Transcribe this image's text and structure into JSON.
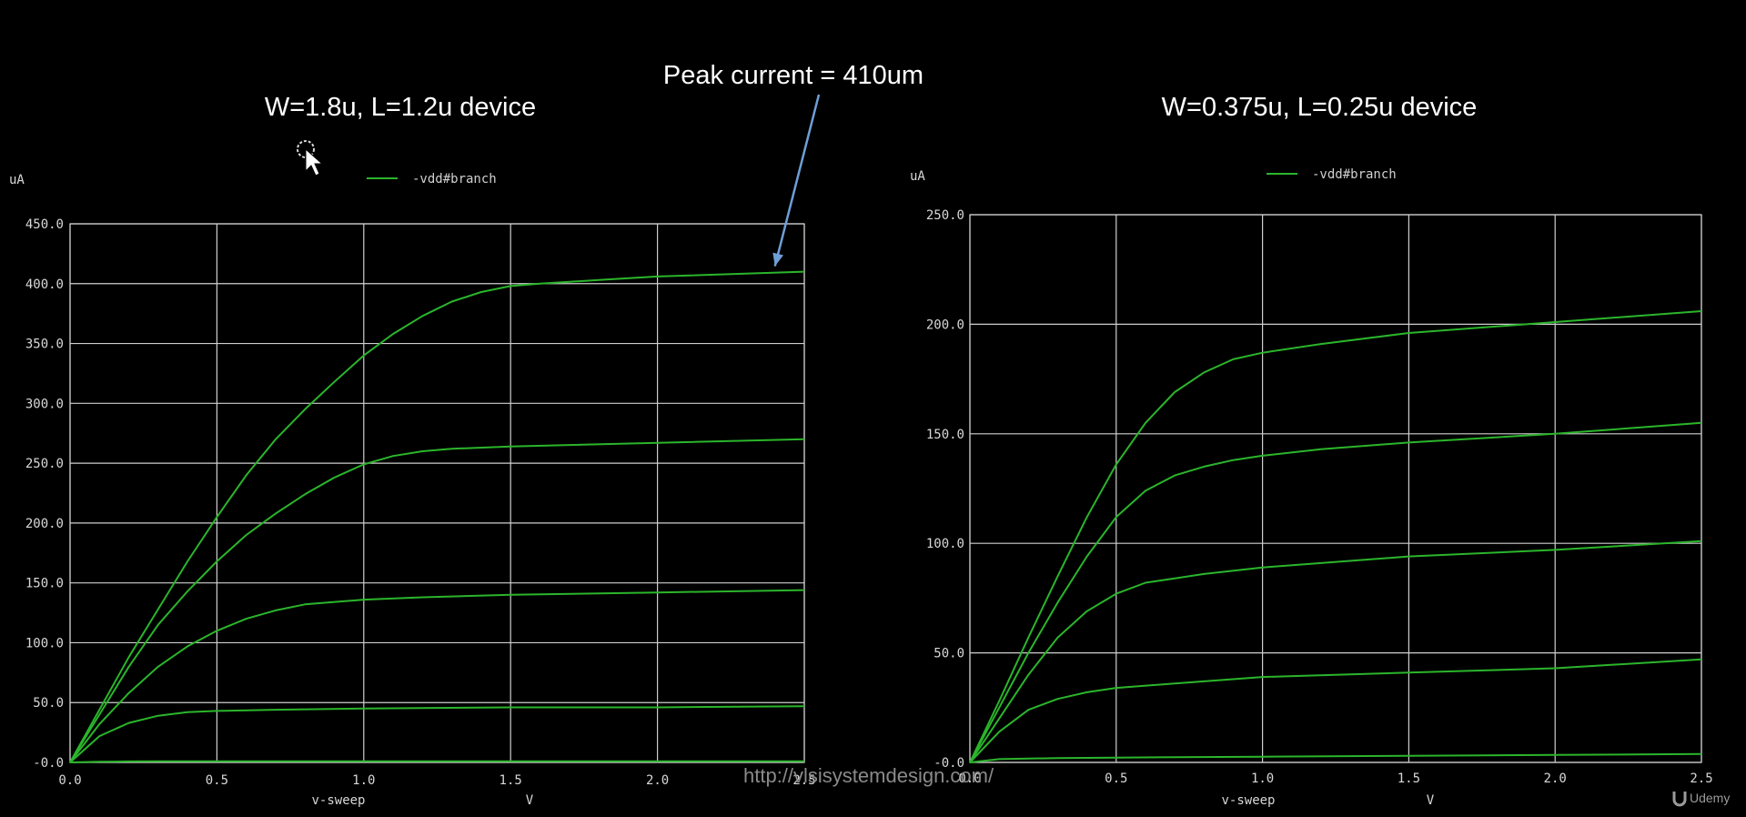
{
  "annotation": {
    "text": "Peak current = 410um",
    "target_x": 2.4,
    "target_y": 410
  },
  "watermark": "http://vlsisystemdesign.com/",
  "brand": "Udemy",
  "colors": {
    "trace": "#2bb52b",
    "grid": "#cfcfcf",
    "arrow": "#6f9ed6",
    "background": "#000000"
  },
  "chart_data": [
    {
      "type": "line",
      "title": "W=1.8u, L=1.2u device",
      "ylabel": "uA",
      "xlabel": "v-sweep",
      "xunit": "V",
      "legend": "-vdd#branch",
      "legend_position": "top-center",
      "grid": true,
      "xlim": [
        0,
        2.5
      ],
      "ylim": [
        0,
        450
      ],
      "x_ticks": [
        "0.0",
        "0.5",
        "1.0",
        "1.5",
        "2.0",
        "2.5"
      ],
      "y_ticks": [
        "-0.0",
        "50.0",
        "100.0",
        "150.0",
        "200.0",
        "250.0",
        "300.0",
        "350.0",
        "400.0",
        "450.0"
      ],
      "series": [
        {
          "x": [
            0,
            0.1,
            0.2,
            0.3,
            0.4,
            0.5,
            0.7,
            1.0,
            1.5,
            2.0,
            2.5
          ],
          "y": [
            0,
            0.5,
            0.8,
            1,
            1,
            1,
            1,
            1,
            1,
            1,
            1
          ]
        },
        {
          "x": [
            0,
            0.1,
            0.2,
            0.3,
            0.4,
            0.5,
            0.7,
            1.0,
            1.5,
            2.0,
            2.5
          ],
          "y": [
            0,
            22,
            33,
            39,
            42,
            43,
            44,
            45,
            46,
            46,
            47
          ]
        },
        {
          "x": [
            0,
            0.1,
            0.2,
            0.3,
            0.4,
            0.5,
            0.6,
            0.7,
            0.8,
            1.0,
            1.2,
            1.5,
            2.0,
            2.5
          ],
          "y": [
            0,
            32,
            58,
            80,
            97,
            110,
            120,
            127,
            132,
            136,
            138,
            140,
            142,
            144
          ]
        },
        {
          "x": [
            0,
            0.1,
            0.2,
            0.3,
            0.4,
            0.5,
            0.6,
            0.7,
            0.8,
            0.9,
            1.0,
            1.1,
            1.2,
            1.3,
            1.5,
            2.0,
            2.5
          ],
          "y": [
            0,
            40,
            80,
            115,
            143,
            168,
            190,
            208,
            224,
            238,
            249,
            256,
            260,
            262,
            264,
            267,
            270
          ]
        },
        {
          "x": [
            0,
            0.1,
            0.2,
            0.3,
            0.4,
            0.5,
            0.6,
            0.7,
            0.8,
            0.9,
            1.0,
            1.1,
            1.2,
            1.3,
            1.4,
            1.5,
            1.6,
            1.8,
            2.0,
            2.5
          ],
          "y": [
            0,
            44,
            88,
            128,
            168,
            205,
            240,
            270,
            295,
            318,
            340,
            358,
            373,
            385,
            393,
            398,
            400,
            403,
            406,
            410
          ]
        }
      ]
    },
    {
      "type": "line",
      "title": "W=0.375u, L=0.25u device",
      "ylabel": "uA",
      "xlabel": "v-sweep",
      "xunit": "V",
      "legend": "-vdd#branch",
      "legend_position": "top-center",
      "grid": true,
      "xlim": [
        0,
        2.5
      ],
      "ylim": [
        0,
        250
      ],
      "x_ticks": [
        "0.0",
        "0.5",
        "1.0",
        "1.5",
        "2.0",
        "2.5"
      ],
      "y_ticks": [
        "-0.0",
        "50.0",
        "100.0",
        "150.0",
        "200.0",
        "250.0"
      ],
      "series": [
        {
          "x": [
            0,
            0.1,
            0.3,
            0.5,
            1.0,
            1.5,
            2.0,
            2.5
          ],
          "y": [
            0,
            1.5,
            2,
            2.2,
            2.6,
            3,
            3.4,
            3.8
          ]
        },
        {
          "x": [
            0,
            0.1,
            0.2,
            0.3,
            0.4,
            0.5,
            0.7,
            1.0,
            1.5,
            2.0,
            2.5
          ],
          "y": [
            0,
            14,
            24,
            29,
            32,
            34,
            36,
            39,
            41,
            43,
            47
          ]
        },
        {
          "x": [
            0,
            0.1,
            0.2,
            0.3,
            0.4,
            0.5,
            0.6,
            0.7,
            0.8,
            1.0,
            1.2,
            1.5,
            2.0,
            2.5
          ],
          "y": [
            0,
            20,
            40,
            57,
            69,
            77,
            82,
            84,
            86,
            89,
            91,
            94,
            97,
            101
          ]
        },
        {
          "x": [
            0,
            0.1,
            0.2,
            0.3,
            0.4,
            0.5,
            0.6,
            0.7,
            0.8,
            0.9,
            1.0,
            1.2,
            1.5,
            2.0,
            2.5
          ],
          "y": [
            0,
            25,
            50,
            73,
            94,
            112,
            124,
            131,
            135,
            138,
            140,
            143,
            146,
            150,
            155
          ]
        },
        {
          "x": [
            0,
            0.1,
            0.2,
            0.3,
            0.4,
            0.5,
            0.6,
            0.7,
            0.8,
            0.9,
            1.0,
            1.2,
            1.5,
            2.0,
            2.5
          ],
          "y": [
            0,
            28,
            57,
            85,
            112,
            136,
            155,
            169,
            178,
            184,
            187,
            191,
            196,
            201,
            206
          ]
        }
      ]
    }
  ]
}
